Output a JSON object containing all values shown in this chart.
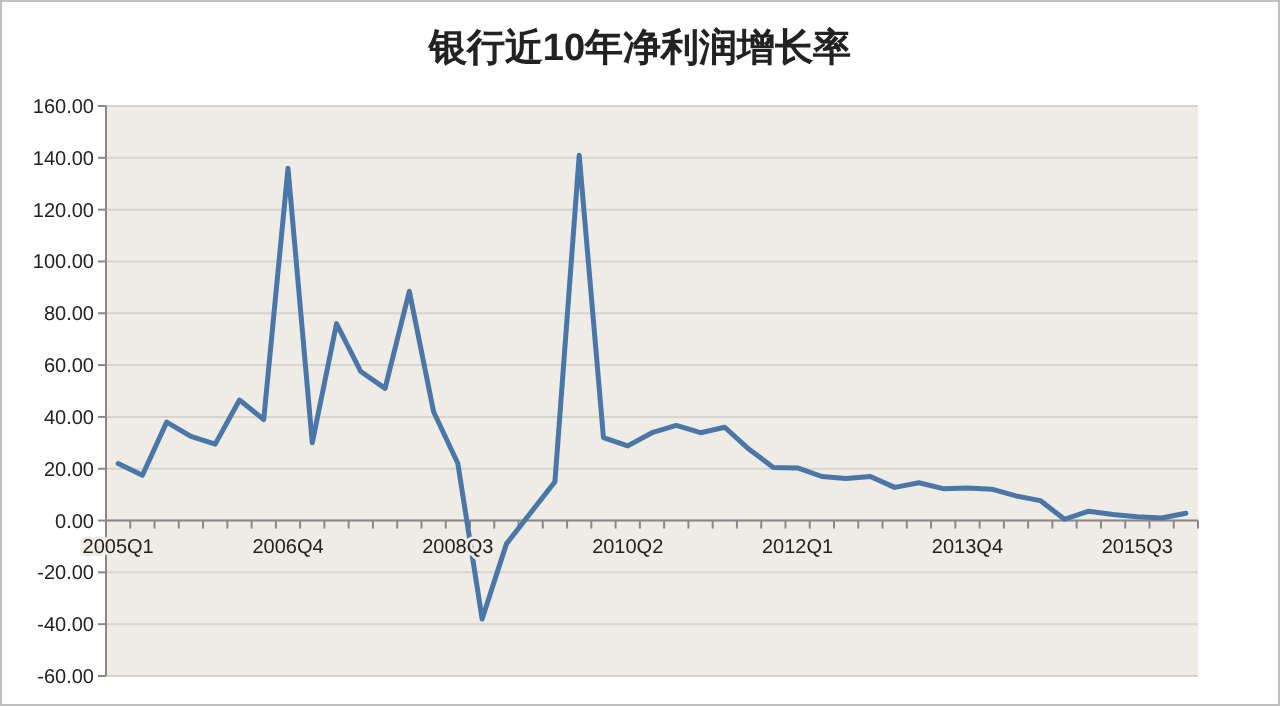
{
  "chart_data": {
    "type": "line",
    "title": "银行近10年净利润增长率",
    "categories": [
      "2005Q1",
      null,
      null,
      null,
      null,
      null,
      null,
      "2006Q4",
      null,
      null,
      null,
      null,
      null,
      null,
      "2008Q3",
      null,
      null,
      null,
      null,
      null,
      null,
      "2010Q2",
      null,
      null,
      null,
      null,
      null,
      null,
      "2012Q1",
      null,
      null,
      null,
      null,
      null,
      null,
      "2013Q4",
      null,
      null,
      null,
      null,
      null,
      null,
      "2015Q3",
      null,
      null
    ],
    "series": [
      {
        "color": "#4a76a8",
        "values": [
          22,
          17.5,
          38,
          32.5,
          29.5,
          46.5,
          39,
          136,
          30,
          76,
          57.5,
          51,
          88.5,
          42,
          22,
          -38,
          -9,
          3,
          15,
          141,
          32,
          28.8,
          33.9,
          36.7,
          33.9,
          36,
          27.5,
          20.5,
          20.3,
          17,
          16.2,
          17,
          12.8,
          14.6,
          12.3,
          12.6,
          12.1,
          9.5,
          7.7,
          0.5,
          3.6,
          2.3,
          1.5,
          1,
          2.8
        ]
      }
    ],
    "ylim": [
      -60,
      160
    ],
    "yticks": [
      {
        "value": -60,
        "label": "-60.00"
      },
      {
        "value": -40,
        "label": "-40.00"
      },
      {
        "value": -20,
        "label": "-20.00"
      },
      {
        "value": 0,
        "label": "0.00"
      },
      {
        "value": 20,
        "label": "20.00"
      },
      {
        "value": 40,
        "label": "40.00"
      },
      {
        "value": 60,
        "label": "60.00"
      },
      {
        "value": 80,
        "label": "80.00"
      },
      {
        "value": 100,
        "label": "100.00"
      },
      {
        "value": 120,
        "label": "120.00"
      },
      {
        "value": 140,
        "label": "140.00"
      },
      {
        "value": 160,
        "label": "160.00"
      }
    ],
    "grid": "y",
    "marker": "none",
    "line_style": "solid"
  }
}
